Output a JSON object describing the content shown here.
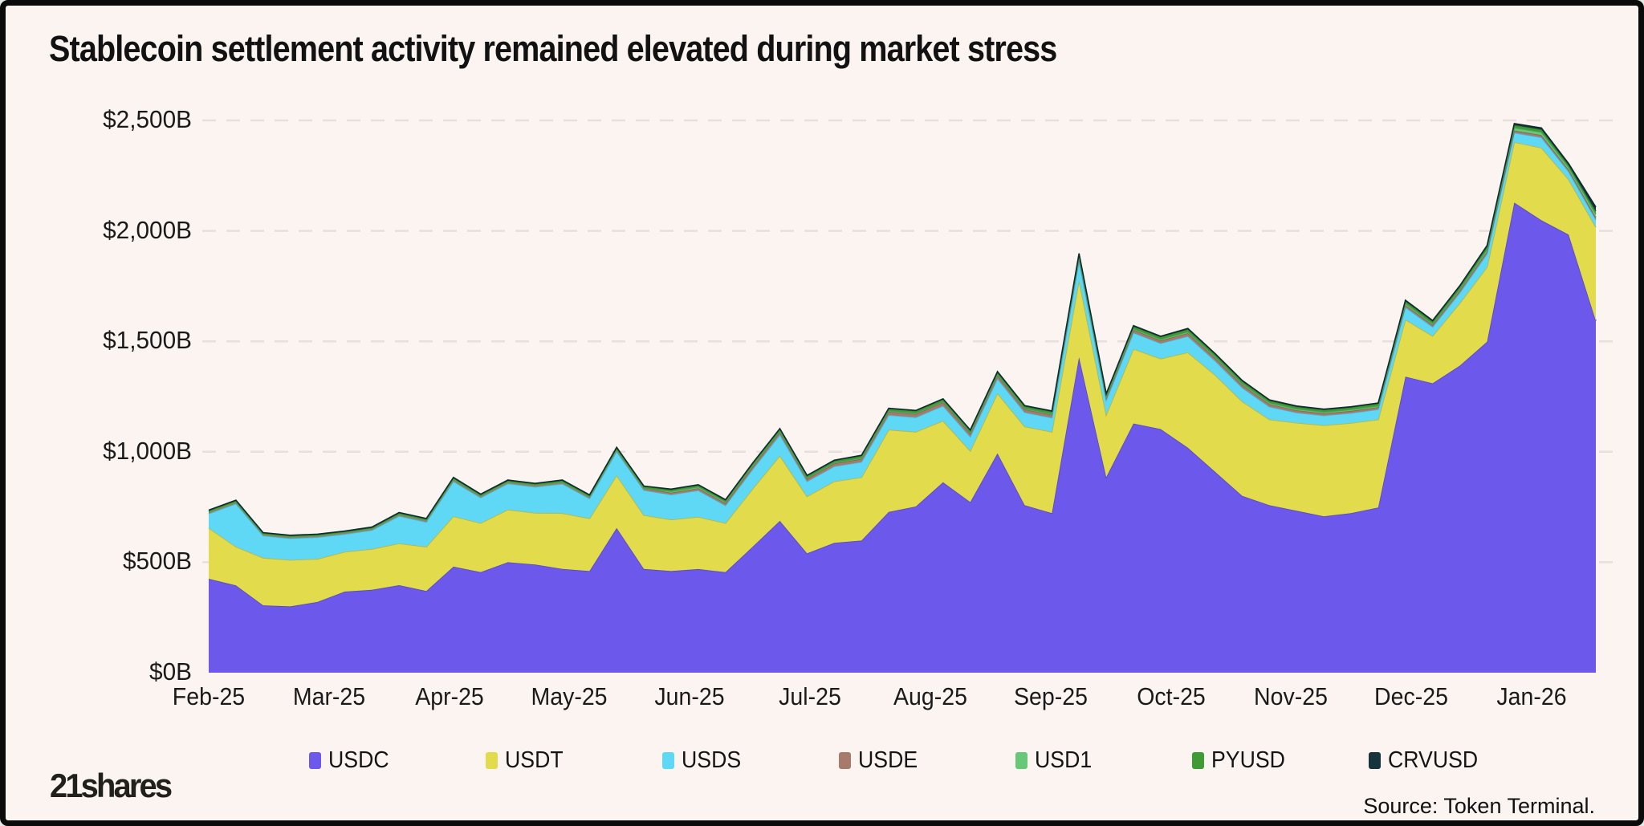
{
  "title": "Stablecoin settlement activity remained elevated during market stress",
  "branding": {
    "logo_text": "21shares",
    "source_label": "Source: Token Terminal."
  },
  "page_colors": {
    "background": "#FCF4F1",
    "border": "#0B0B0B",
    "gridline": "#E8DFDC",
    "text": "#141414"
  },
  "chart_data": {
    "type": "area",
    "stacked": true,
    "grid": "dashed horizontal",
    "legend_position": "bottom",
    "x_unit": "week",
    "y_unit": "billions USD",
    "ylim": [
      0,
      2500
    ],
    "x_axis": {
      "tick_labels": [
        "Feb-25",
        "Mar-25",
        "Apr-25",
        "May-25",
        "Jun-25",
        "Jul-25",
        "Aug-25",
        "Sep-25",
        "Oct-25",
        "Nov-25",
        "Dec-25",
        "Jan-26"
      ]
    },
    "y_axis": {
      "tick_labels": [
        "$0B",
        "$500B",
        "$1,000B",
        "$1,500B",
        "$2,000B",
        "$2,500B"
      ],
      "tick_values": [
        0,
        500,
        1000,
        1500,
        2000,
        2500
      ]
    },
    "series": [
      {
        "name": "USDC",
        "color": "#6C58EA",
        "edge_color": "#5847C4",
        "values": [
          425,
          395,
          305,
          300,
          320,
          367,
          375,
          396,
          370,
          480,
          455,
          500,
          490,
          470,
          460,
          655,
          470,
          460,
          469,
          455,
          570,
          687,
          540,
          588,
          598,
          728,
          752,
          862,
          772,
          993,
          758,
          722,
          1428,
          885,
          1128,
          1103,
          1018,
          910,
          800,
          758,
          733,
          708,
          722,
          748,
          1340,
          1310,
          1390,
          1498,
          2128,
          2048,
          1983,
          1593
        ]
      },
      {
        "name": "USDT",
        "color": "#E2DB4B",
        "edge_color": "#BDB535",
        "values": [
          230,
          175,
          215,
          210,
          195,
          180,
          185,
          189,
          200,
          228,
          222,
          238,
          233,
          252,
          238,
          238,
          243,
          233,
          236,
          222,
          262,
          295,
          258,
          278,
          286,
          372,
          338,
          278,
          232,
          272,
          356,
          368,
          348,
          282,
          338,
          318,
          432,
          438,
          428,
          388,
          398,
          412,
          408,
          398,
          258,
          214,
          283,
          338,
          274,
          328,
          250,
          424
        ]
      },
      {
        "name": "USDS",
        "color": "#5ED8F5",
        "edge_color": "#43BCDD",
        "values": [
          65,
          195,
          100,
          98,
          98,
          80,
          85,
          124,
          112,
          158,
          115,
          118,
          118,
          133,
          90,
          108,
          113,
          113,
          120,
          80,
          88,
          95,
          68,
          68,
          70,
          66,
          66,
          68,
          64,
          66,
          64,
          64,
          88,
          66,
          73,
          70,
          73,
          64,
          62,
          58,
          46,
          44,
          45,
          46,
          56,
          41,
          47,
          60,
          42,
          47,
          35,
          34
        ]
      },
      {
        "name": "USDE",
        "color": "#A87A6C",
        "edge_color": "#8A6154",
        "values": [
          8,
          8,
          7,
          7,
          7,
          7,
          7,
          8,
          8,
          9,
          8,
          8,
          8,
          8,
          8,
          9,
          9,
          9,
          10,
          10,
          12,
          12,
          12,
          13,
          14,
          15,
          15,
          16,
          15,
          15,
          14,
          14,
          14,
          12,
          13,
          13,
          14,
          13,
          13,
          12,
          11,
          10,
          10,
          10,
          10,
          9,
          10,
          11,
          10,
          11,
          9,
          10
        ]
      },
      {
        "name": "USD1",
        "color": "#67C878",
        "edge_color": "#49A95D",
        "values": [
          0,
          0,
          0,
          0,
          0,
          0,
          0,
          0,
          0,
          0,
          0,
          0,
          0,
          0,
          0,
          0,
          0,
          6,
          6,
          6,
          6,
          4,
          4,
          4,
          4,
          4,
          4,
          4,
          4,
          4,
          4,
          4,
          5,
          5,
          5,
          5,
          6,
          6,
          6,
          6,
          6,
          6,
          6,
          6,
          7,
          6,
          7,
          9,
          13,
          13,
          11,
          15
        ]
      },
      {
        "name": "PYUSD",
        "color": "#3F9C35",
        "edge_color": "#2E7F27",
        "values": [
          6,
          6,
          5,
          5,
          5,
          5,
          5,
          6,
          6,
          7,
          6,
          6,
          6,
          7,
          7,
          8,
          8,
          8,
          8,
          8,
          9,
          10,
          9,
          9,
          10,
          10,
          10,
          10,
          10,
          10,
          10,
          10,
          12,
          10,
          11,
          11,
          12,
          11,
          11,
          10,
          10,
          10,
          10,
          10,
          11,
          10,
          11,
          12,
          12,
          12,
          10,
          13
        ]
      },
      {
        "name": "CRVUSD",
        "color": "#17333E",
        "edge_color": "#102A33",
        "values": [
          2,
          2,
          2,
          2,
          2,
          2,
          2,
          2,
          2,
          2,
          2,
          2,
          2,
          2,
          2,
          2,
          2,
          2,
          2,
          2,
          2,
          2,
          2,
          2,
          2,
          2,
          2,
          2,
          2,
          3,
          3,
          3,
          3,
          3,
          3,
          3,
          3,
          3,
          3,
          3,
          3,
          3,
          3,
          3,
          4,
          4,
          4,
          6,
          7,
          7,
          7,
          19
        ]
      }
    ]
  }
}
